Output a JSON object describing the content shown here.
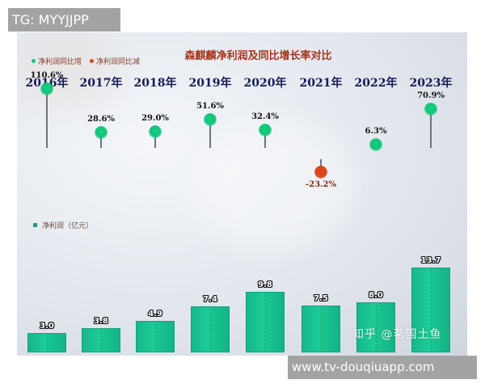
{
  "watermarks": {
    "top_left": "TG: MYYJJPP",
    "bottom_right": "www.tv-douqiuapp.com",
    "source": "知乎 @茗国土鱼"
  },
  "colors": {
    "increase": "#16c27d",
    "decrease": "#d7461d",
    "bar": "#1cc492",
    "title": "#a5331a",
    "year": "#141c56"
  },
  "chart_data": [
    {
      "type": "scatter",
      "title": "森麒麟净利润及同比增长率对比",
      "legend": [
        {
          "label": "净利润同比增",
          "color": "#16c27d"
        },
        {
          "label": "净利润同比减",
          "color": "#d7461d"
        }
      ],
      "categories": [
        "2016年",
        "2017年",
        "2018年",
        "2019年",
        "2020年",
        "2021年",
        "2022年",
        "2023年"
      ],
      "values": [
        110.6,
        28.6,
        29.0,
        51.6,
        32.4,
        -23.2,
        6.3,
        70.9
      ],
      "labels": [
        "110.6%",
        "28.6%",
        "29.0%",
        "51.6%",
        "32.4%",
        "-23.2%",
        "6.3%",
        "70.9%"
      ],
      "unit": "%",
      "grid": false,
      "legend_position": "top-left"
    },
    {
      "type": "bar",
      "title": "",
      "legend": [
        {
          "label": "净利润（亿元）",
          "color": "#1fa07d"
        }
      ],
      "categories": [
        "2016年",
        "2017年",
        "2018年",
        "2019年",
        "2020年",
        "2021年",
        "2022年",
        "2023年"
      ],
      "values": [
        3.0,
        3.8,
        4.9,
        7.4,
        9.8,
        7.5,
        8.0,
        13.7
      ],
      "labels": [
        "3.0",
        "3.8",
        "4.9",
        "7.4",
        "9.8",
        "7.5",
        "8.0",
        "13.7"
      ],
      "ylabel": "净利润（亿元）",
      "grid": false,
      "legend_position": "middle-left"
    }
  ]
}
